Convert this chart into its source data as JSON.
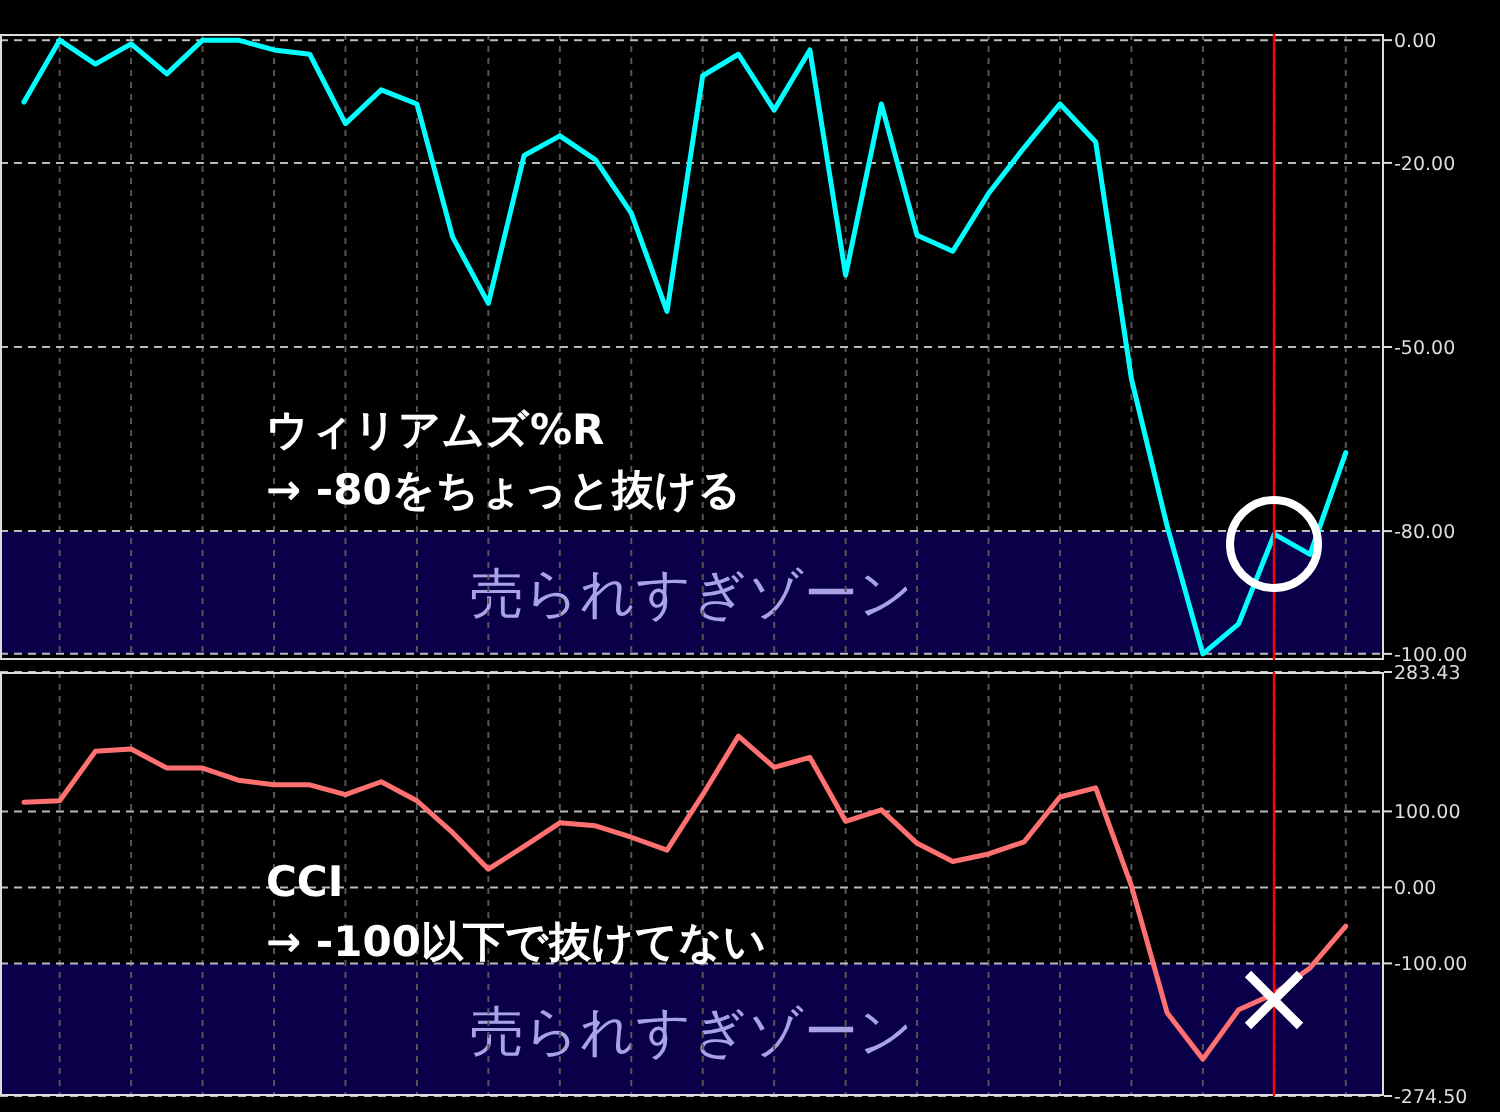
{
  "chart_data": [
    {
      "type": "line",
      "categories": [
        null,
        null,
        null,
        null,
        null,
        null,
        null,
        null,
        null,
        null,
        null,
        null,
        null,
        null,
        null,
        null,
        null,
        null,
        null,
        null,
        null,
        null,
        null,
        null,
        null,
        null,
        null,
        null,
        null,
        null,
        null,
        null,
        null,
        null,
        null,
        null,
        null,
        null
      ],
      "series": [
        {
          "color": "#00ffff",
          "values": [
            -10.1,
            0,
            -3.9,
            -0.6,
            -5.5,
            0,
            0,
            -1.6,
            -2.3,
            -13.6,
            -8.1,
            -10.4,
            -32.1,
            -42.9,
            -18.8,
            -15.6,
            -19.5,
            -28.2,
            -44.2,
            -5.8,
            -2.3,
            -11.4,
            -1.6,
            -38.3,
            -10.4,
            -31.8,
            -34.4,
            -25,
            -17.5,
            -10.4,
            -16.6,
            -55.2,
            -79.2,
            -100,
            -95.1,
            -80.5,
            -83.8,
            -67.2
          ]
        }
      ],
      "ylim": [
        -101,
        1
      ],
      "yticks": [
        {
          "value": 0,
          "label": "0.00"
        },
        {
          "value": -20,
          "label": "-20.00"
        },
        {
          "value": -50,
          "label": "-50.00"
        },
        {
          "value": -80,
          "label": "-80.00"
        },
        {
          "value": -100,
          "label": "-100.00"
        }
      ],
      "grid": true,
      "tick_labels": "y",
      "bands": [
        {
          "axis": "y",
          "from": -100,
          "to": -80,
          "label": "売られすぎゾーン",
          "color": "#0a004a"
        }
      ],
      "annotations": [
        "ウィリアムズ%R\n→ -80をちょっと抜ける"
      ]
    },
    {
      "type": "line",
      "categories": [
        null,
        null,
        null,
        null,
        null,
        null,
        null,
        null,
        null,
        null,
        null,
        null,
        null,
        null,
        null,
        null,
        null,
        null,
        null,
        null,
        null,
        null,
        null,
        null,
        null,
        null,
        null,
        null,
        null,
        null,
        null,
        null,
        null,
        null,
        null,
        null,
        null,
        null
      ],
      "series": [
        {
          "color": "#ff7070",
          "values": [
            112,
            114,
            179,
            182,
            157,
            157,
            141,
            135,
            135,
            122,
            139,
            114,
            72,
            24,
            54,
            85,
            81,
            66,
            49,
            122,
            199,
            158,
            171,
            87,
            102,
            58,
            34,
            44,
            60,
            119,
            131,
            2,
            -165,
            -226,
            -161,
            -140,
            -106,
            -51
          ]
        }
      ],
      "ylim": [
        -274.5,
        283.43
      ],
      "yticks": [
        {
          "value": 283.43,
          "label": "283.43"
        },
        {
          "value": 100,
          "label": "100.00"
        },
        {
          "value": 0,
          "label": "0.00"
        },
        {
          "value": -100,
          "label": "-100.00"
        },
        {
          "value": -274.5,
          "label": "-274.50"
        }
      ],
      "grid": true,
      "tick_labels": "y",
      "bands": [
        {
          "axis": "y",
          "from": -274.5,
          "to": -100,
          "label": "売られすぎゾーン",
          "color": "#0a004a"
        }
      ],
      "annotations": [
        "CCI\n→ -100以下で抜けてない"
      ]
    }
  ]
}
